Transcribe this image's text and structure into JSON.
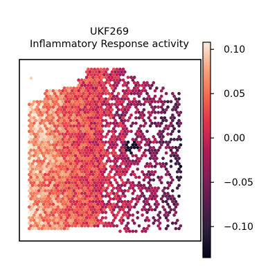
{
  "chart_data": {
    "type": "heatmap",
    "subtype": "spatial-hexbin",
    "title_line1": "UKF269",
    "title_line2": "Inflammatory Response activity",
    "colormap": "rocket",
    "colorbar": {
      "vmin": -0.135,
      "vmax": 0.108,
      "ticks": [
        0.1,
        0.05,
        0.0,
        -0.05,
        -0.1
      ],
      "tick_labels": [
        "0.10",
        "0.05",
        "0.00",
        "−0.05",
        "−0.10"
      ],
      "placement": "right"
    },
    "axes": {
      "ticks": false,
      "frame": true
    },
    "approx_value_distribution": {
      "left_region_range": [
        0.0,
        0.08
      ],
      "center_region_range": [
        -0.03,
        0.04
      ],
      "right_region_range": [
        -0.13,
        0.0
      ],
      "isolated_low_spots": [
        "center-right",
        "lower-right"
      ]
    }
  }
}
